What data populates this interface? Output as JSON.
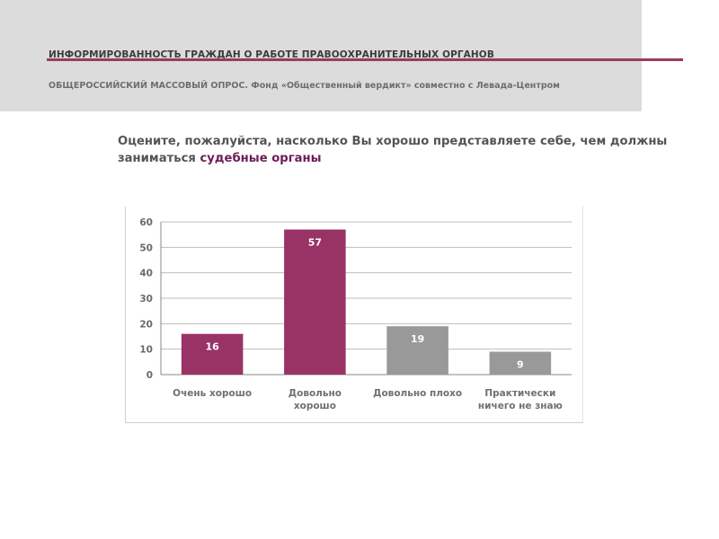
{
  "header": {
    "title": "ИНФОРМИРОВАННОСТЬ ГРАЖДАН О РАБОТЕ ПРАВООХРАНИТЕЛЬНЫХ ОРГАНОВ",
    "subtitle": "ОБЩЕРОССИЙСКИЙ МАССОВЫЙ ОПРОС. Фонд «Общественный вердикт» совместно с Левада-Центром",
    "accent_color": "#9b3a63"
  },
  "question": {
    "text": "Оцените, пожалуйста, насколько Вы хорошо представляете себе, чем должны заниматься ",
    "highlight": "судебные органы",
    "highlight_color": "#6b1e55"
  },
  "chart_data": {
    "type": "bar",
    "categories": [
      [
        "Очень хорошо"
      ],
      [
        "Довольно",
        "хорошо"
      ],
      [
        "Довольно плохо"
      ],
      [
        "Практически",
        "ничего не знаю"
      ]
    ],
    "values": [
      16,
      57,
      19,
      9
    ],
    "colors": [
      "#993366",
      "#993366",
      "#999999",
      "#999999"
    ],
    "ylim": [
      0,
      60
    ],
    "yticks": [
      0,
      10,
      20,
      30,
      40,
      50,
      60
    ],
    "grid": true,
    "legend": "none"
  }
}
